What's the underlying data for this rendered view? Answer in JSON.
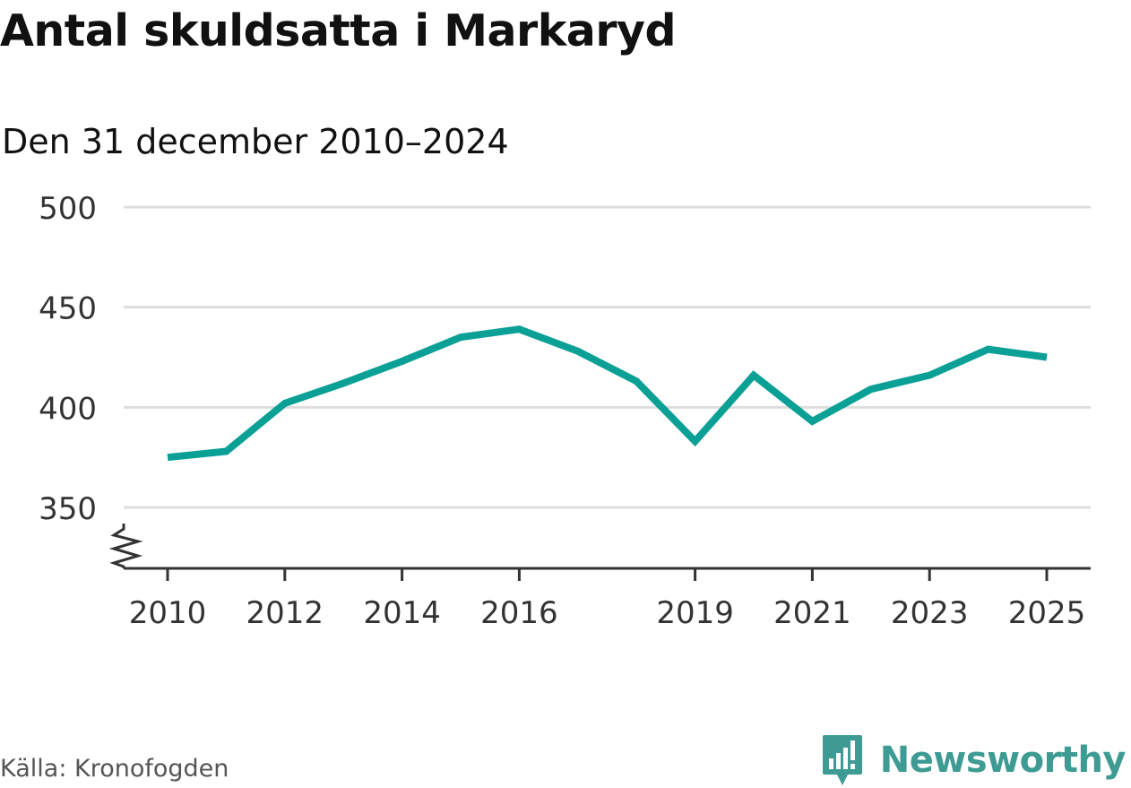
{
  "title": "Antal skuldsatta i Markaryd",
  "subtitle": "Den 31 december 2010–2024",
  "source": "Källa: Kronofogden",
  "brand": "Newsworthy",
  "colors": {
    "line": "#0aa096",
    "grid": "#dddddd",
    "axis": "#333333",
    "text": "#111111",
    "brand": "#3d9b93"
  },
  "chart_data": {
    "type": "line",
    "title": "Antal skuldsatta i Markaryd",
    "subtitle": "Den 31 december 2010–2024",
    "xlabel": "",
    "ylabel": "",
    "xlim": [
      2009.7,
      2025.7
    ],
    "ylim": [
      320,
      500
    ],
    "grid": true,
    "y_axis_break": true,
    "y_ticks": [
      350,
      400,
      450,
      500
    ],
    "x_ticks": [
      2010,
      2012,
      2014,
      2016,
      2019,
      2021,
      2023,
      2025
    ],
    "series": [
      {
        "name": "Antal skuldsatta",
        "x": [
          2010,
          2011,
          2012,
          2013,
          2014,
          2015,
          2016,
          2017,
          2018,
          2019,
          2020,
          2021,
          2022,
          2023,
          2024,
          2025
        ],
        "values": [
          375,
          378,
          402,
          412,
          423,
          435,
          439,
          428,
          413,
          383,
          416,
          393,
          409,
          416,
          429,
          425
        ]
      }
    ]
  }
}
